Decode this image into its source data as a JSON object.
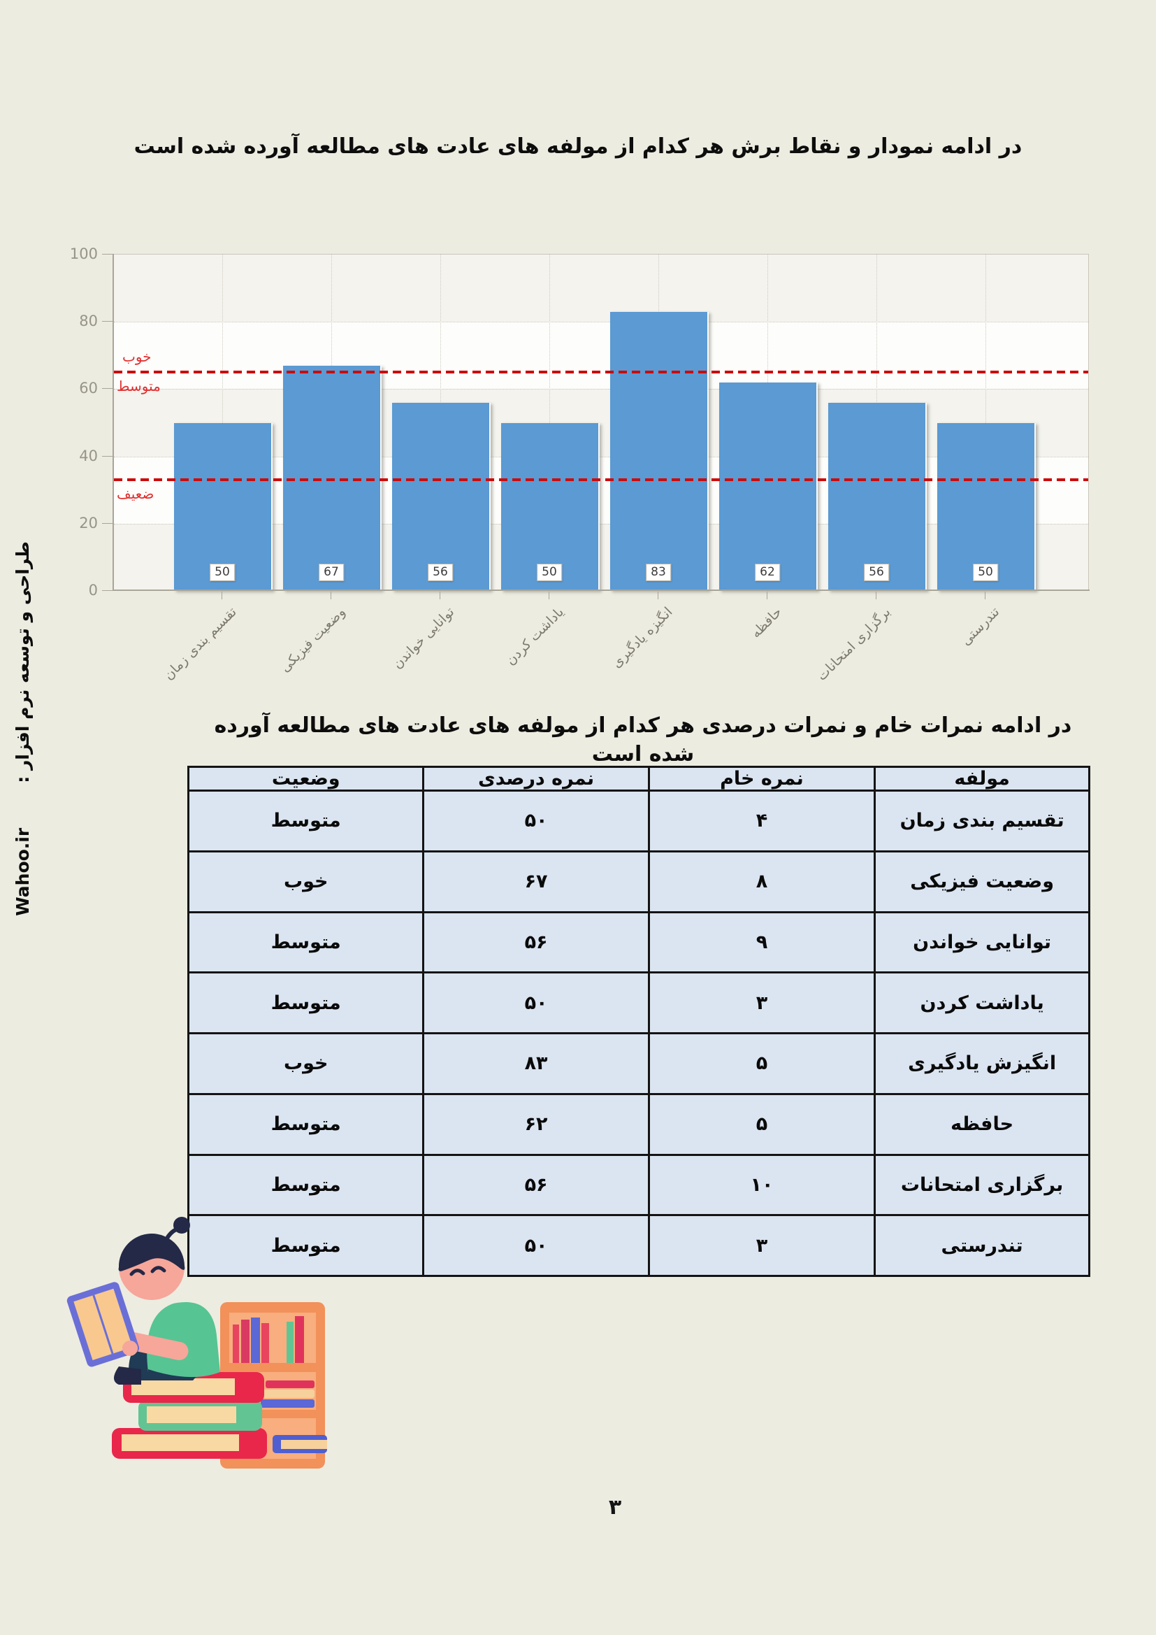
{
  "page": {
    "background_color": "#edece1",
    "number_label": "۳"
  },
  "sidebar": {
    "credit_text": "طراحی و توسعه نرم افزار :",
    "brand": "Wahoo.ir"
  },
  "chart_section": {
    "title": "در ادامه نمودار و نقاط برش هر کدام از مولفه های عادت های مطالعه آورده شده است"
  },
  "chart_data": {
    "type": "bar",
    "title": "",
    "categories": [
      "تقسیم بندی زمان",
      "وضعیت فیزیکی",
      "توانایی خواندن",
      "یاداشت کردن",
      "انگیزه یادگیری",
      "حافظه",
      "برگزاری امتحانات",
      "تندرستی"
    ],
    "values": [
      50,
      67,
      56,
      50,
      83,
      62,
      56,
      50
    ],
    "value_labels": [
      "50",
      "67",
      "56",
      "50",
      "83",
      "62",
      "56",
      "50"
    ],
    "ylim": [
      0,
      100
    ],
    "yticks": [
      0,
      20,
      40,
      60,
      80,
      100
    ],
    "grid": true,
    "legend_position": "none",
    "bar_color": "#5b9ad3",
    "band_color_dark": "#f4f3ee",
    "band_color_light": "#fdfdfb",
    "cutline_color": "#cc0b0b",
    "cutline_label_color": "#e03030",
    "cutlines": [
      {
        "value": 65,
        "label_above": "خوب",
        "label_below": "متوسط"
      },
      {
        "value": 33,
        "label_above": "",
        "label_below": "ضعیف"
      }
    ]
  },
  "table_section": {
    "title": "در ادامه نمرات خام و نمرات درصدی هر کدام از مولفه های عادت های مطالعه آورده شده است"
  },
  "table": {
    "headers": [
      "مولفه",
      "نمره خام",
      "نمره درصدی",
      "وضعیت"
    ],
    "rows": [
      [
        "تقسیم بندی زمان",
        "۴",
        "۵۰",
        "متوسط"
      ],
      [
        "وضعیت فیزیکی",
        "۸",
        "۶۷",
        "خوب"
      ],
      [
        "توانایی خواندن",
        "۹",
        "۵۶",
        "متوسط"
      ],
      [
        "یاداشت کردن",
        "۳",
        "۵۰",
        "متوسط"
      ],
      [
        "انگیزش یادگیری",
        "۵",
        "۸۳",
        "خوب"
      ],
      [
        "حافظه",
        "۵",
        "۶۲",
        "متوسط"
      ],
      [
        "برگزاری امتحانات",
        "۱۰",
        "۵۶",
        "متوسط"
      ],
      [
        "تندرستی",
        "۳",
        "۵۰",
        "متوسط"
      ]
    ]
  }
}
